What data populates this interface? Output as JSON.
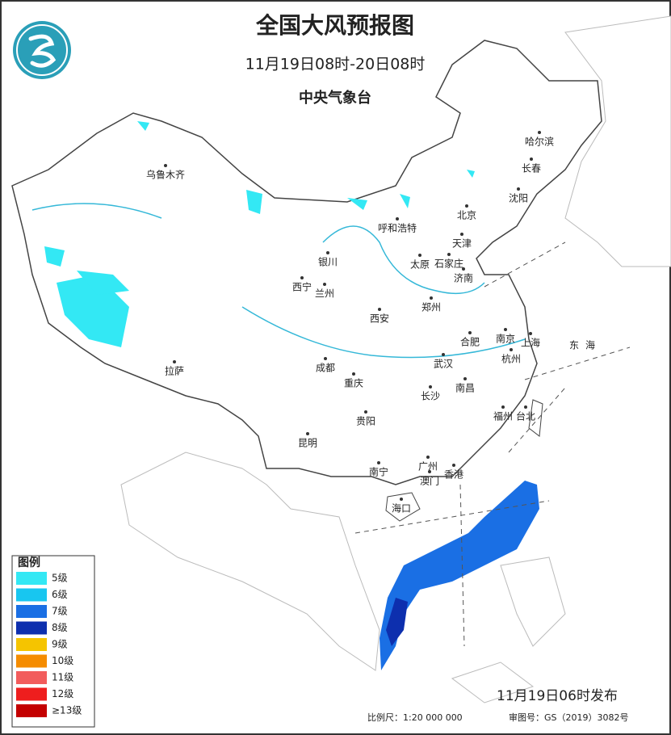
{
  "header": {
    "title": "全国大风预报图",
    "subtitle": "11月19日08时-20日08时",
    "issuer": "中央气象台"
  },
  "legend": {
    "title": "图例",
    "items": [
      {
        "label": "5级",
        "color": "#33e8f4"
      },
      {
        "label": "6级",
        "color": "#18c6f0"
      },
      {
        "label": "7级",
        "color": "#1a6fe4"
      },
      {
        "label": "8级",
        "color": "#0d2fae"
      },
      {
        "label": "9级",
        "color": "#f5c400"
      },
      {
        "label": "10级",
        "color": "#f58c00"
      },
      {
        "label": "11级",
        "color": "#f25c5c"
      },
      {
        "label": "12级",
        "color": "#ee1e1e"
      },
      {
        "label": "≥13级",
        "color": "#c40000"
      }
    ]
  },
  "cities": [
    "乌鲁木齐",
    "哈尔滨",
    "长春",
    "沈阳",
    "北京",
    "天津",
    "呼和浩特",
    "石家庄",
    "太原",
    "济南",
    "银川",
    "西宁",
    "兰州",
    "郑州",
    "西安",
    "合肥",
    "南京",
    "上海",
    "杭州",
    "武汉",
    "成都",
    "重庆",
    "拉萨",
    "长沙",
    "南昌",
    "福州",
    "台北",
    "贵阳",
    "昆明",
    "南宁",
    "广州",
    "香港",
    "澳门",
    "海口"
  ],
  "seas": [
    "东海"
  ],
  "footer": {
    "published": "11月19日06时发布",
    "scale": "比例尺：1:20 000 000",
    "review": "审图号：GS（2019）3082号"
  }
}
